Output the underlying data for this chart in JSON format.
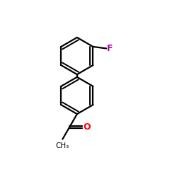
{
  "background_color": "#ffffff",
  "line_color": "#000000",
  "bond_width": 1.6,
  "fig_size": [
    2.5,
    2.5
  ],
  "dpi": 100,
  "F_label": "F",
  "F_color": "#aa00aa",
  "O_label": "O",
  "O_color": "#ff0000",
  "CH3_label": "CH₃",
  "CH3_color": "#000000",
  "font_size_label": 9.0,
  "font_size_ch3": 7.5
}
